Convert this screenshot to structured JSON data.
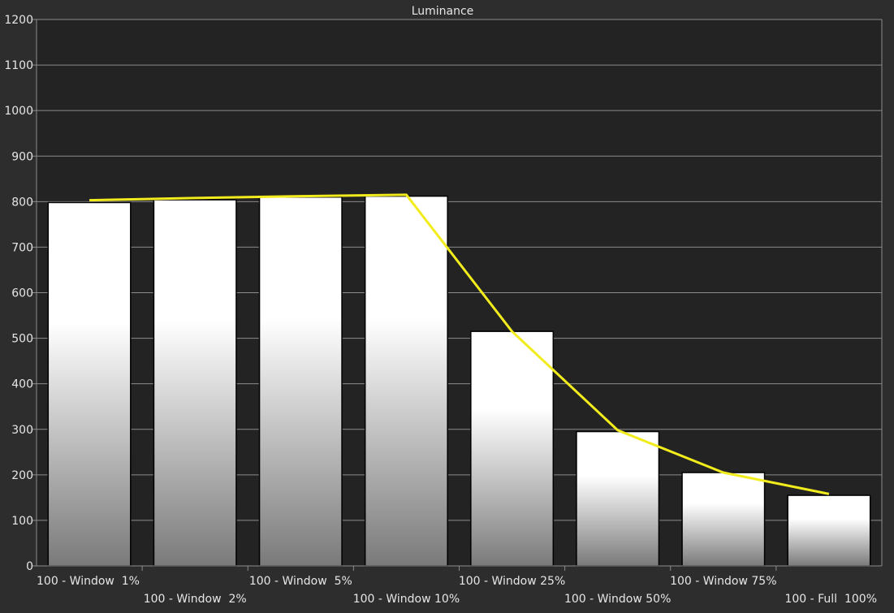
{
  "chart_data": {
    "type": "bar",
    "title": "Luminance",
    "xlabel": "",
    "ylabel": "",
    "ylim": [
      0,
      1200
    ],
    "yticks": [
      "0",
      "100",
      "200",
      "300",
      "400",
      "500",
      "600",
      "700",
      "800",
      "900",
      "1000",
      "1100",
      "1200"
    ],
    "grid": true,
    "categories": [
      "100 - Window  1%",
      "100 - Window  2%",
      "100 - Window  5%",
      "100 - Window 10%",
      "100 - Window 25%",
      "100 - Window 50%",
      "100 - Window 75%",
      "100 - Full  100%"
    ],
    "series": [
      {
        "type": "bar",
        "values": [
          798,
          804,
          810,
          812,
          515,
          295,
          205,
          155
        ]
      },
      {
        "type": "line",
        "values": [
          803,
          808,
          812,
          815,
          515,
          298,
          205,
          158
        ]
      }
    ],
    "colors": {
      "background": "#2d2d2d",
      "plot_background": "#232323",
      "grid": "#8c8c8c",
      "bar_fill_top": "#ffffff",
      "bar_fill_bottom": "#7a7a7a",
      "bar_stroke": "#000000",
      "line": "#f2ec1c",
      "text": "#e6e6e6"
    }
  }
}
